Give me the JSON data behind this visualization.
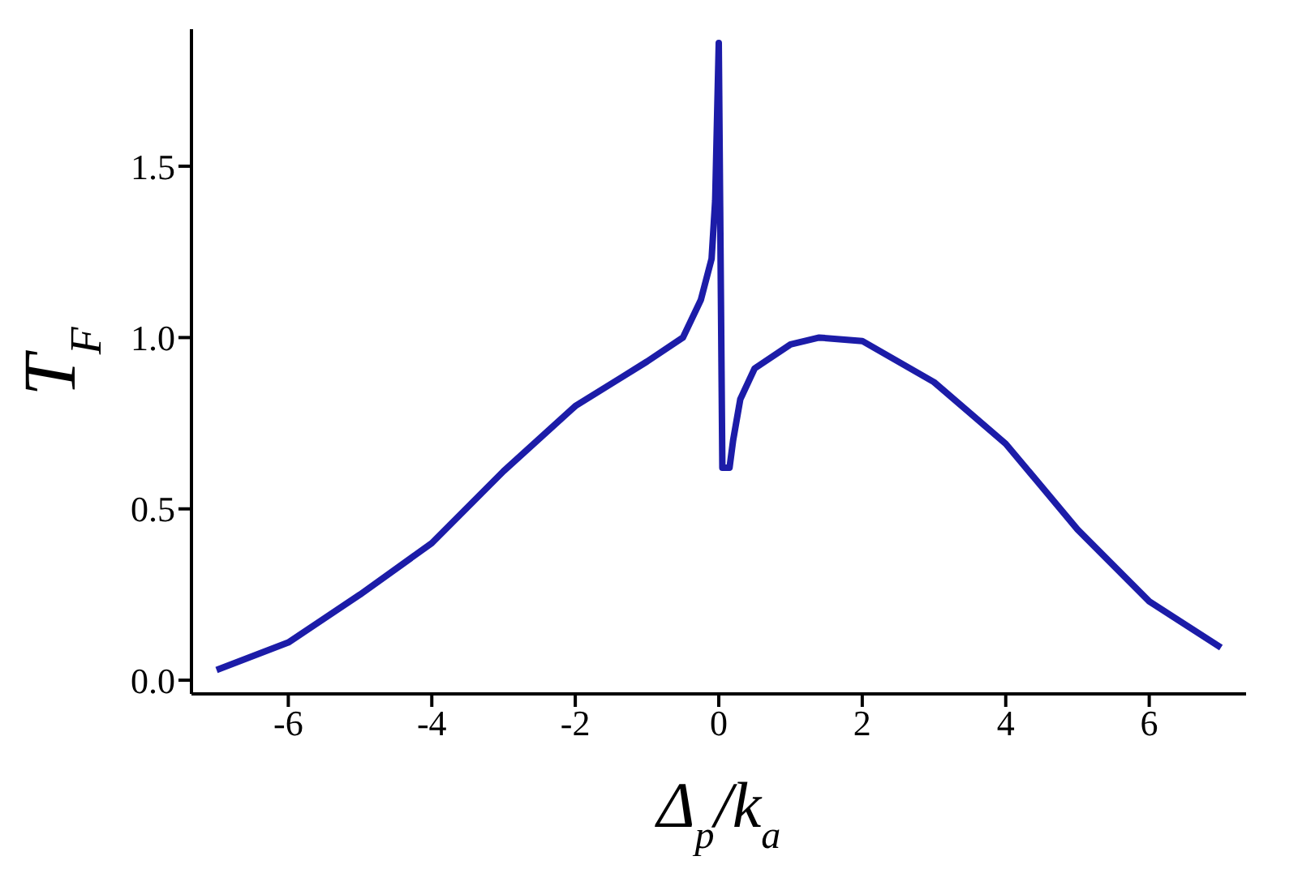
{
  "chart_data": {
    "type": "line",
    "xlabel": "Δ$_{p}$/k$_{a}$",
    "ylabel": "T$_{F}$",
    "x": [
      -7,
      -6,
      -5,
      -4,
      -3,
      -2,
      -1,
      -0.5,
      -0.25,
      -0.1,
      -0.05,
      0,
      0.05,
      0.15,
      0.2,
      0.3,
      0.5,
      1,
      1.4,
      2,
      3,
      4,
      5,
      6,
      7
    ],
    "series": [
      {
        "color": "#1c1ca8",
        "values": [
          0.03,
          0.11,
          0.25,
          0.4,
          0.61,
          0.8,
          0.93,
          1.0,
          1.11,
          1.23,
          1.4,
          1.86,
          0.62,
          0.62,
          0.7,
          0.82,
          0.91,
          0.98,
          1.0,
          0.99,
          0.87,
          0.69,
          0.44,
          0.23,
          0.095
        ]
      }
    ],
    "xlim": [
      -7.35,
      7.35
    ],
    "ylim": [
      -0.04,
      1.9
    ],
    "xticks": [
      -6,
      -4,
      -2,
      0,
      2,
      4,
      6
    ],
    "yticks": [
      {
        "value": 0,
        "label": "0.0"
      },
      0.5,
      {
        "value": 1,
        "label": "1.0"
      },
      1.5
    ],
    "grid": false,
    "legend": false,
    "marker": "none",
    "line_style": "solid"
  }
}
